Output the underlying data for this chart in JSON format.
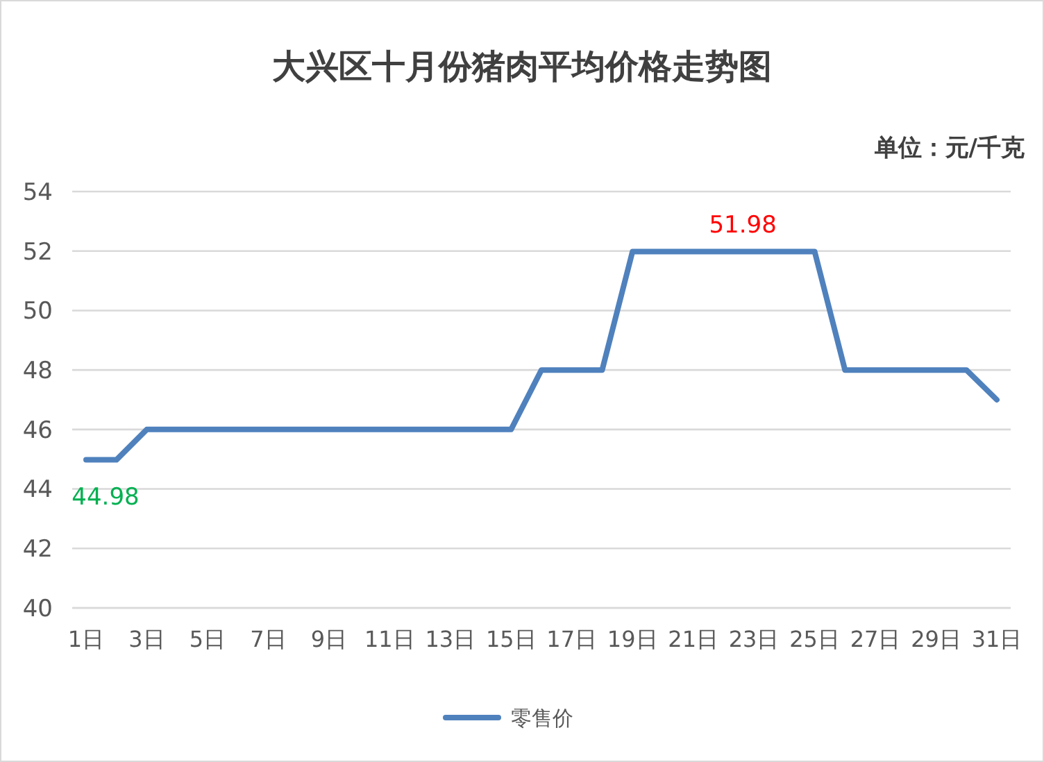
{
  "chart_data": {
    "type": "line",
    "title": "大兴区十月份猪肉平均价格走势图",
    "annotations": [
      "单位：元/千克"
    ],
    "categories": [
      "1日",
      null,
      "3日",
      null,
      "5日",
      null,
      "7日",
      null,
      "9日",
      null,
      "11日",
      null,
      "13日",
      null,
      "15日",
      null,
      "17日",
      null,
      "19日",
      null,
      "21日",
      null,
      "23日",
      null,
      "25日",
      null,
      "27日",
      null,
      "29日",
      null,
      "31日"
    ],
    "series": [
      {
        "name": "零售价",
        "color": "#4f81bd",
        "values": [
          44.98,
          44.98,
          46,
          46,
          46,
          46,
          46,
          46,
          46,
          46,
          46,
          46,
          46,
          46,
          46,
          48,
          48,
          48,
          51.98,
          51.98,
          51.98,
          51.98,
          51.98,
          51.98,
          51.98,
          48,
          48,
          48,
          48,
          48,
          47
        ],
        "value_labels": [
          "44.98",
          null,
          null,
          null,
          null,
          null,
          null,
          null,
          null,
          null,
          null,
          null,
          null,
          null,
          null,
          null,
          null,
          null,
          null,
          null,
          null,
          null,
          "51.98",
          null,
          null,
          null,
          null,
          null,
          null,
          null,
          null
        ]
      }
    ],
    "ylim": [
      40,
      54
    ],
    "yticks": [
      40,
      42,
      44,
      46,
      48,
      50,
      52,
      54
    ],
    "grid": "y",
    "legend": "bottom",
    "marker": "none",
    "line_style": "solid"
  }
}
